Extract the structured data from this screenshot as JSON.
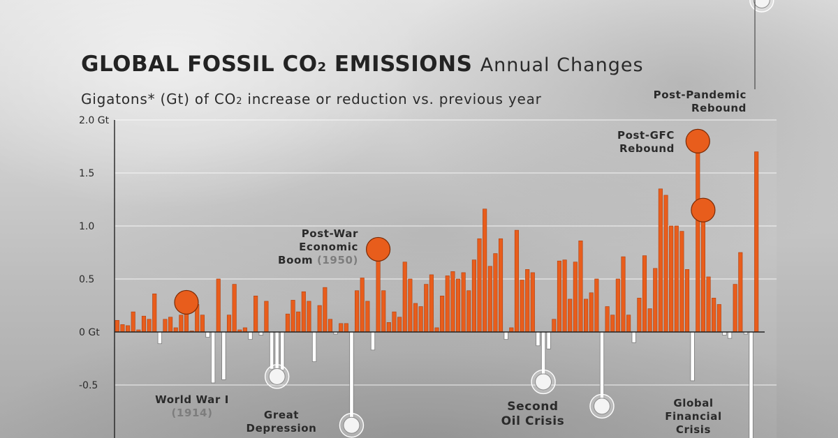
{
  "header": {
    "title_main": "GLOBAL FOSSIL CO",
    "title_sub": "2",
    "title_end": " EMISSIONS",
    "title_secondary": "Annual Changes",
    "subtitle_start": "Gigatons* (Gt) of CO",
    "subtitle_sub": "2",
    "subtitle_end": "  increase or reduction vs. previous year"
  },
  "colors": {
    "increase": "#e85d1c",
    "decrease": "#ffffff",
    "axis": "#222222",
    "grid": "#ffffff"
  },
  "chart_data": {
    "type": "bar",
    "units": "Gt",
    "ylim": [
      -0.85,
      2.0
    ],
    "y_ticks": [
      {
        "value": 2.0,
        "label": "2.0 Gt"
      },
      {
        "value": 1.5,
        "label": "1.5"
      },
      {
        "value": 1.0,
        "label": "1.0"
      },
      {
        "value": 0.5,
        "label": "0.5"
      },
      {
        "value": 0,
        "label": "0 Gt"
      },
      {
        "value": -0.5,
        "label": "-0.5"
      }
    ],
    "grid": true,
    "values": [
      0.11,
      0.07,
      0.06,
      0.19,
      0.02,
      0.15,
      0.12,
      0.36,
      -0.11,
      0.12,
      0.14,
      0.04,
      0.16,
      0.28,
      0.01,
      0.26,
      0.16,
      -0.05,
      -0.48,
      0.5,
      -0.45,
      0.16,
      0.45,
      0.02,
      0.04,
      -0.07,
      0.34,
      -0.03,
      0.29,
      -0.35,
      -0.42,
      -0.36,
      0.17,
      0.3,
      0.19,
      0.38,
      0.29,
      -0.28,
      0.25,
      0.42,
      0.12,
      -0.02,
      0.08,
      0.08,
      -0.88,
      0.39,
      0.51,
      0.29,
      -0.17,
      0.78,
      0.39,
      0.09,
      0.19,
      0.14,
      0.66,
      0.5,
      0.27,
      0.24,
      0.45,
      0.54,
      0.04,
      0.34,
      0.53,
      0.57,
      0.5,
      0.56,
      0.39,
      0.68,
      0.88,
      1.16,
      0.62,
      0.74,
      0.88,
      -0.07,
      0.04,
      0.96,
      0.49,
      0.59,
      0.56,
      -0.13,
      -0.47,
      -0.16,
      0.12,
      0.67,
      0.68,
      0.31,
      0.66,
      0.86,
      0.31,
      0.37,
      0.5,
      -0.7,
      0.24,
      0.16,
      0.5,
      0.71,
      0.16,
      -0.1,
      0.32,
      0.72,
      0.22,
      0.6,
      1.35,
      1.29,
      1.0,
      1.0,
      0.95,
      0.59,
      -0.46,
      1.8,
      1.15,
      0.52,
      0.32,
      0.26,
      -0.03,
      -0.06,
      0.45,
      0.75,
      -0.02,
      -1.1,
      1.7
    ],
    "annotations": [
      {
        "index": 13,
        "lines": [
          {
            "text": "World War I",
            "year": ""
          },
          {
            "text": "",
            "year": "(1914)"
          }
        ]
      },
      {
        "index": 30,
        "lines": [
          {
            "text": "Great",
            "year": ""
          },
          {
            "text": "Depression",
            "year": ""
          }
        ]
      },
      {
        "index": 49,
        "lines": [
          {
            "text": "Post-War",
            "year": ""
          },
          {
            "text": "Economic",
            "year": ""
          },
          {
            "text": "Boom ",
            "year": "(1950)"
          }
        ]
      },
      {
        "index": 80,
        "lines": [
          {
            "text": "Second",
            "year": ""
          },
          {
            "text": "Oil Crisis",
            "year": ""
          }
        ]
      },
      {
        "index": 109,
        "lines": [
          {
            "text": "Global",
            "year": ""
          },
          {
            "text": "Financial",
            "year": ""
          },
          {
            "text": "Crisis",
            "year": ""
          }
        ]
      },
      {
        "index": 110,
        "lines": [
          {
            "text": "Post-GFC",
            "year": ""
          },
          {
            "text": "Rebound",
            "year": ""
          }
        ]
      },
      {
        "index": 121,
        "lines": [
          {
            "text": "Post-Pandemic",
            "year": ""
          },
          {
            "text": "Rebound",
            "year": ""
          }
        ]
      }
    ],
    "highlights": [
      13,
      30,
      44,
      49,
      80,
      91,
      109,
      110,
      121
    ]
  }
}
